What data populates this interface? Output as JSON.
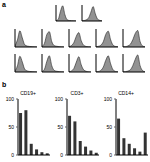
{
  "chart_data": [
    {
      "type": "area",
      "annotations": [
        "a"
      ],
      "x": [
        0,
        1,
        2,
        3,
        4,
        5,
        6,
        7,
        8,
        9
      ],
      "values": [
        2,
        10,
        60,
        95,
        40,
        8,
        3,
        2,
        1,
        0
      ],
      "xlim": [
        0,
        9
      ],
      "ylim": [
        0,
        100
      ],
      "tick_labels": false,
      "color": "#777777"
    },
    {
      "type": "area",
      "x": [
        0,
        1,
        2,
        3,
        4,
        5,
        6,
        7,
        8,
        9
      ],
      "values": [
        1,
        3,
        8,
        20,
        55,
        90,
        45,
        12,
        4,
        1
      ],
      "xlim": [
        0,
        9
      ],
      "ylim": [
        0,
        100
      ],
      "tick_labels": false,
      "color": "#777777"
    },
    {
      "type": "area",
      "x": [
        0,
        1,
        2,
        3,
        4,
        5,
        6,
        7,
        8,
        9
      ],
      "values": [
        5,
        40,
        90,
        50,
        12,
        5,
        3,
        2,
        1,
        0
      ],
      "xlim": [
        0,
        9
      ],
      "ylim": [
        0,
        100
      ],
      "tick_labels": false,
      "color": "#777777"
    },
    {
      "type": "area",
      "x": [
        0,
        1,
        2,
        3,
        4,
        5,
        6,
        7,
        8,
        9
      ],
      "values": [
        3,
        20,
        70,
        85,
        30,
        8,
        4,
        2,
        1,
        0
      ],
      "xlim": [
        0,
        9
      ],
      "ylim": [
        0,
        100
      ],
      "tick_labels": false,
      "color": "#777777"
    },
    {
      "type": "area",
      "x": [
        0,
        1,
        2,
        3,
        4,
        5,
        6,
        7,
        8,
        9
      ],
      "values": [
        2,
        8,
        25,
        60,
        80,
        35,
        10,
        3,
        1,
        0
      ],
      "xlim": [
        0,
        9
      ],
      "ylim": [
        0,
        100
      ],
      "tick_labels": false,
      "color": "#777777"
    },
    {
      "type": "area",
      "x": [
        0,
        1,
        2,
        3,
        4,
        5,
        6,
        7,
        8,
        9
      ],
      "values": [
        1,
        4,
        10,
        30,
        70,
        88,
        40,
        10,
        3,
        1
      ],
      "xlim": [
        0,
        9
      ],
      "ylim": [
        0,
        100
      ],
      "tick_labels": false,
      "color": "#777777"
    },
    {
      "type": "area",
      "x": [
        0,
        1,
        2,
        3,
        4,
        5,
        6,
        7,
        8,
        9
      ],
      "values": [
        1,
        2,
        6,
        15,
        40,
        75,
        92,
        30,
        6,
        1
      ],
      "xlim": [
        0,
        9
      ],
      "ylim": [
        0,
        100
      ],
      "tick_labels": false,
      "color": "#777777"
    },
    {
      "type": "area",
      "x": [
        0,
        1,
        2,
        3,
        4,
        5,
        6,
        7,
        8,
        9
      ],
      "values": [
        4,
        35,
        88,
        55,
        15,
        6,
        3,
        2,
        1,
        0
      ],
      "xlim": [
        0,
        9
      ],
      "ylim": [
        0,
        100
      ],
      "tick_labels": false,
      "color": "#777777"
    },
    {
      "type": "area",
      "x": [
        0,
        1,
        2,
        3,
        4,
        5,
        6,
        7,
        8,
        9
      ],
      "values": [
        2,
        15,
        60,
        90,
        35,
        9,
        4,
        2,
        1,
        0
      ],
      "xlim": [
        0,
        9
      ],
      "ylim": [
        0,
        100
      ],
      "tick_labels": false,
      "color": "#777777"
    },
    {
      "type": "area",
      "x": [
        0,
        1,
        2,
        3,
        4,
        5,
        6,
        7,
        8,
        9
      ],
      "values": [
        1,
        6,
        20,
        55,
        85,
        40,
        12,
        4,
        1,
        0
      ],
      "xlim": [
        0,
        9
      ],
      "ylim": [
        0,
        100
      ],
      "tick_labels": false,
      "color": "#777777"
    },
    {
      "type": "area",
      "x": [
        0,
        1,
        2,
        3,
        4,
        5,
        6,
        7,
        8,
        9
      ],
      "values": [
        1,
        3,
        9,
        28,
        65,
        90,
        45,
        12,
        3,
        1
      ],
      "xlim": [
        0,
        9
      ],
      "ylim": [
        0,
        100
      ],
      "tick_labels": false,
      "color": "#777777"
    },
    {
      "type": "area",
      "x": [
        0,
        1,
        2,
        3,
        4,
        5,
        6,
        7,
        8,
        9
      ],
      "values": [
        1,
        2,
        5,
        12,
        35,
        70,
        95,
        35,
        8,
        1
      ],
      "xlim": [
        0,
        9
      ],
      "ylim": [
        0,
        100
      ],
      "tick_labels": false,
      "color": "#777777"
    },
    {
      "type": "bar",
      "title": "CD19+",
      "annotations": [
        "b"
      ],
      "categories": [
        null,
        null,
        null,
        null,
        null,
        null
      ],
      "values": [
        75,
        80,
        20,
        10,
        5,
        3
      ],
      "ylim": [
        0,
        100
      ],
      "yticks": [
        0,
        50,
        100
      ],
      "color": "#333333"
    },
    {
      "type": "bar",
      "title": "CD3+",
      "categories": [
        null,
        null,
        null,
        null,
        null,
        null
      ],
      "values": [
        70,
        60,
        25,
        15,
        8,
        4
      ],
      "ylim": [
        0,
        100
      ],
      "yticks": [
        0,
        50,
        100
      ],
      "color": "#333333"
    },
    {
      "type": "bar",
      "title": "CD14+",
      "categories": [
        null,
        null,
        null,
        null,
        null,
        null
      ],
      "values": [
        65,
        30,
        20,
        12,
        6,
        40
      ],
      "ylim": [
        0,
        100
      ],
      "yticks": [
        0,
        50,
        100
      ],
      "color": "#333333"
    }
  ]
}
